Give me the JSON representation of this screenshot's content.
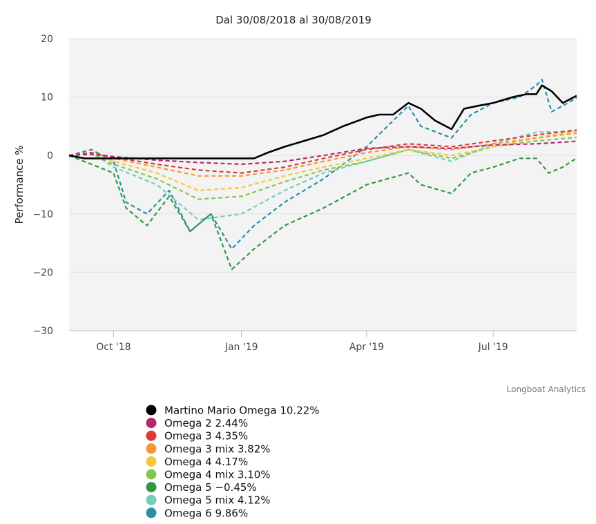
{
  "chart_data": {
    "type": "line",
    "title": "Dal 30/08/2018 al 30/08/2019",
    "ylabel": "Performance %",
    "xlabel": "",
    "ylim": [
      -30,
      20
    ],
    "yticks": [
      20,
      10,
      0,
      -10,
      -20,
      -30
    ],
    "ytick_labels": [
      "20",
      "10",
      "0",
      "−10",
      "−20",
      "−30"
    ],
    "xlim": [
      "2018-08-30",
      "2019-08-30"
    ],
    "xticks": [
      "2018-10-01",
      "2019-01-01",
      "2019-04-01",
      "2019-07-01"
    ],
    "xtick_labels": [
      "Oct '18",
      "Jan '19",
      "Apr '19",
      "Jul '19"
    ],
    "grid": "horizontal",
    "legend_position": "bottom-left",
    "credit": "Longboat Analytics",
    "series": [
      {
        "name": "Martino Mario Omega 10.22%",
        "color": "#000000",
        "dash": "solid",
        "x": [
          "2018-08-30",
          "2018-09-10",
          "2018-09-25",
          "2018-10-01",
          "2018-11-01",
          "2018-12-01",
          "2019-01-01",
          "2019-01-10",
          "2019-01-20",
          "2019-02-01",
          "2019-02-15",
          "2019-03-01",
          "2019-03-15",
          "2019-04-01",
          "2019-04-10",
          "2019-04-20",
          "2019-05-01",
          "2019-05-10",
          "2019-05-20",
          "2019-06-01",
          "2019-06-10",
          "2019-06-20",
          "2019-07-01",
          "2019-07-15",
          "2019-07-25",
          "2019-08-01",
          "2019-08-05",
          "2019-08-12",
          "2019-08-20",
          "2019-08-30"
        ],
        "y": [
          0,
          -0.5,
          -0.5,
          -0.5,
          -0.5,
          -0.5,
          -0.5,
          -0.5,
          0.5,
          1.5,
          2.5,
          3.5,
          5,
          6.5,
          7,
          7,
          9,
          8,
          6,
          4.5,
          8,
          8.5,
          9,
          10,
          10.5,
          10.5,
          12,
          11,
          9,
          10.22
        ]
      },
      {
        "name": "Omega 2 2.44%",
        "color": "#b5296a",
        "dash": "dashed",
        "x": [
          "2018-08-30",
          "2018-09-15",
          "2018-10-01",
          "2018-11-01",
          "2018-12-01",
          "2019-01-01",
          "2019-02-01",
          "2019-03-01",
          "2019-04-01",
          "2019-05-01",
          "2019-06-01",
          "2019-07-01",
          "2019-08-01",
          "2019-08-30"
        ],
        "y": [
          0,
          0.2,
          -0.2,
          -0.8,
          -1.2,
          -1.5,
          -1,
          0,
          1.2,
          1.5,
          1.2,
          1.8,
          2,
          2.44
        ]
      },
      {
        "name": "Omega 3 4.35%",
        "color": "#dd3a35",
        "dash": "dashed",
        "x": [
          "2018-08-30",
          "2018-09-15",
          "2018-10-01",
          "2018-11-01",
          "2018-12-01",
          "2019-01-01",
          "2019-02-01",
          "2019-03-01",
          "2019-04-01",
          "2019-05-01",
          "2019-06-01",
          "2019-07-01",
          "2019-08-01",
          "2019-08-30"
        ],
        "y": [
          0,
          0.5,
          -0.3,
          -1.5,
          -2.5,
          -3,
          -2,
          -0.5,
          1,
          2,
          1.5,
          2.5,
          3.5,
          4.35
        ]
      },
      {
        "name": "Omega 3 mix 3.82%",
        "color": "#f7953a",
        "dash": "dashed",
        "x": [
          "2018-08-30",
          "2018-09-15",
          "2018-10-01",
          "2018-11-01",
          "2018-12-01",
          "2019-01-01",
          "2019-02-01",
          "2019-03-01",
          "2019-04-01",
          "2019-05-01",
          "2019-06-01",
          "2019-07-01",
          "2019-08-01",
          "2019-08-30"
        ],
        "y": [
          0,
          0.5,
          -0.5,
          -2,
          -3.5,
          -3.5,
          -2.5,
          -1,
          0.5,
          1.5,
          1,
          2,
          3,
          3.82
        ]
      },
      {
        "name": "Omega 4 4.17%",
        "color": "#f3c935",
        "dash": "dashed",
        "x": [
          "2018-08-30",
          "2018-09-15",
          "2018-10-01",
          "2018-11-01",
          "2018-12-01",
          "2019-01-01",
          "2019-02-01",
          "2019-03-01",
          "2019-04-01",
          "2019-05-01",
          "2019-06-01",
          "2019-07-01",
          "2019-08-01",
          "2019-08-30"
        ],
        "y": [
          0,
          0.5,
          -1,
          -3,
          -6,
          -5.5,
          -3.5,
          -2,
          -0.5,
          1,
          0,
          1.5,
          3,
          4.17
        ]
      },
      {
        "name": "Omega 4 mix 3.10%",
        "color": "#86c64e",
        "dash": "dashed",
        "x": [
          "2018-08-30",
          "2018-09-15",
          "2018-10-01",
          "2018-11-01",
          "2018-12-01",
          "2019-01-01",
          "2019-02-01",
          "2019-03-01",
          "2019-04-01",
          "2019-05-01",
          "2019-06-01",
          "2019-07-01",
          "2019-08-01",
          "2019-08-30"
        ],
        "y": [
          0,
          0.3,
          -1.5,
          -4,
          -7.5,
          -7,
          -4.5,
          -2.5,
          -1,
          1,
          -0.5,
          1.5,
          2.5,
          3.1
        ]
      },
      {
        "name": "Omega 5 −0.45%",
        "color": "#2f9a3f",
        "dash": "dashed",
        "x": [
          "2018-08-30",
          "2018-09-15",
          "2018-10-01",
          "2018-10-10",
          "2018-10-25",
          "2018-11-10",
          "2018-11-25",
          "2018-12-10",
          "2018-12-25",
          "2019-01-10",
          "2019-02-01",
          "2019-03-01",
          "2019-04-01",
          "2019-05-01",
          "2019-05-10",
          "2019-06-01",
          "2019-06-15",
          "2019-07-01",
          "2019-07-20",
          "2019-08-01",
          "2019-08-10",
          "2019-08-20",
          "2019-08-30"
        ],
        "y": [
          0,
          -1.5,
          -3,
          -9,
          -12,
          -7,
          -13,
          -10,
          -19.5,
          -16,
          -12,
          -9,
          -5,
          -3,
          -5,
          -6.5,
          -3,
          -2,
          -0.5,
          -0.5,
          -3,
          -2,
          -0.45
        ]
      },
      {
        "name": "Omega 5 mix 4.12%",
        "color": "#6fcfbd",
        "dash": "dashed",
        "x": [
          "2018-08-30",
          "2018-09-15",
          "2018-10-01",
          "2018-11-01",
          "2018-12-01",
          "2019-01-01",
          "2019-02-01",
          "2019-03-01",
          "2019-04-01",
          "2019-05-01",
          "2019-06-01",
          "2019-07-01",
          "2019-08-01",
          "2019-08-30"
        ],
        "y": [
          0,
          0.5,
          -2,
          -5,
          -11,
          -10,
          -6,
          -3,
          -1,
          1,
          -1,
          2,
          4,
          4.12
        ]
      },
      {
        "name": "Omega 6 9.86%",
        "color": "#2a8ea8",
        "dash": "dashed",
        "x": [
          "2018-08-30",
          "2018-09-15",
          "2018-10-01",
          "2018-10-10",
          "2018-10-25",
          "2018-11-10",
          "2018-11-25",
          "2018-12-10",
          "2018-12-25",
          "2019-01-10",
          "2019-02-01",
          "2019-03-01",
          "2019-04-01",
          "2019-05-01",
          "2019-05-10",
          "2019-06-01",
          "2019-06-15",
          "2019-07-01",
          "2019-07-20",
          "2019-08-01",
          "2019-08-05",
          "2019-08-12",
          "2019-08-20",
          "2019-08-30"
        ],
        "y": [
          0,
          1,
          -1,
          -8,
          -10,
          -6,
          -13,
          -10,
          -16,
          -12,
          -8,
          -4,
          1.5,
          8.5,
          5,
          3,
          7,
          9,
          10,
          12,
          13,
          7.5,
          8.5,
          9.86
        ]
      }
    ]
  }
}
